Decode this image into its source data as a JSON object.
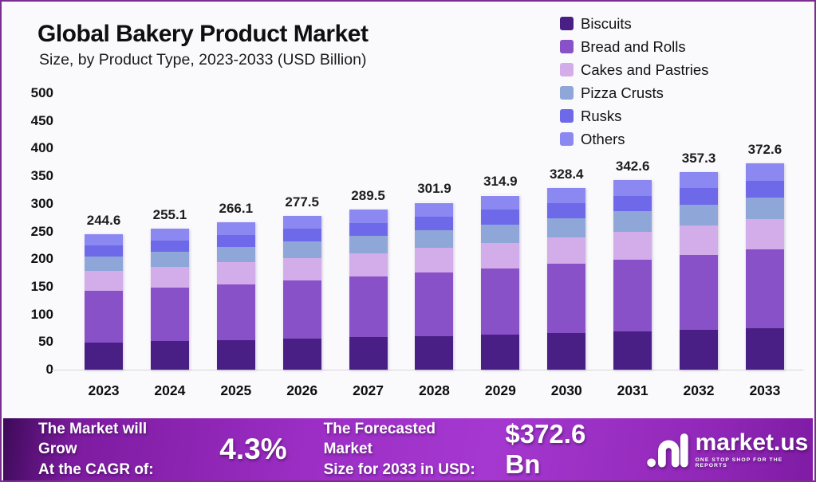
{
  "header": {
    "title": "Global Bakery Product Market",
    "subtitle": "Size, by Product Type, 2023-2033 (USD Billion)"
  },
  "chart_data": {
    "type": "bar",
    "stacked": true,
    "title": "Global Bakery Product Market",
    "subtitle": "Size, by Product Type, 2023-2033 (USD Billion)",
    "unit": "USD Billion",
    "categories": [
      "2023",
      "2024",
      "2025",
      "2026",
      "2027",
      "2028",
      "2029",
      "2030",
      "2031",
      "2032",
      "2033"
    ],
    "totals": [
      244.6,
      255.1,
      266.1,
      277.5,
      289.5,
      301.9,
      314.9,
      328.4,
      342.6,
      357.3,
      372.6
    ],
    "series": [
      {
        "name": "Biscuits",
        "color": "#4a1f85",
        "values": [
          49.4,
          51.5,
          53.8,
          56.1,
          58.5,
          61.0,
          63.6,
          66.3,
          69.2,
          72.2,
          75.3
        ]
      },
      {
        "name": "Bread and Rolls",
        "color": "#8951c8",
        "values": [
          93.0,
          96.9,
          101.1,
          105.5,
          110.0,
          114.7,
          119.7,
          124.8,
          130.2,
          135.8,
          141.6
        ]
      },
      {
        "name": "Cakes and Pastries",
        "color": "#d3adea",
        "values": [
          36.0,
          37.5,
          39.1,
          40.8,
          42.6,
          44.4,
          46.3,
          48.3,
          50.4,
          52.5,
          54.8
        ]
      },
      {
        "name": "Pizza Crusts",
        "color": "#8ea6d8",
        "values": [
          25.9,
          27.0,
          28.2,
          29.4,
          30.7,
          32.0,
          33.4,
          34.8,
          36.3,
          37.9,
          39.5
        ]
      },
      {
        "name": "Rusks",
        "color": "#6e69e8",
        "values": [
          20.3,
          21.2,
          22.1,
          23.0,
          24.0,
          25.1,
          26.1,
          27.3,
          28.4,
          29.7,
          30.9
        ]
      },
      {
        "name": "Others",
        "color": "#8b88f1",
        "values": [
          20.0,
          21.0,
          21.8,
          22.7,
          23.7,
          24.7,
          25.8,
          26.9,
          28.1,
          29.2,
          30.5
        ]
      }
    ],
    "y_axis": {
      "min": 0,
      "max": 500,
      "step": 50,
      "ticks": [
        0,
        50,
        100,
        150,
        200,
        250,
        300,
        350,
        400,
        450,
        500
      ]
    },
    "grid": false,
    "legend_position": "top-right",
    "note": "Segment values estimated from bar pixel heights; totals are the printed data labels."
  },
  "footer": {
    "cagr_label_line1": "The Market will Grow",
    "cagr_label_line2": "At the CAGR of:",
    "cagr_value": "4.3%",
    "forecast_label_line1": "The Forecasted Market",
    "forecast_label_line2": "Size for 2033 in USD:",
    "forecast_value": "$372.6 Bn",
    "brand_name": "market.us",
    "brand_tagline": "ONE STOP SHOP FOR THE REPORTS"
  },
  "colors": {
    "page_border": "#7c2e90",
    "page_background": "#faf9fc",
    "banner_gradient_start": "#3d0a58",
    "banner_gradient_mid": "#a538d0",
    "banner_gradient_end": "#7f1ba4",
    "text": "#0f0f0f"
  }
}
